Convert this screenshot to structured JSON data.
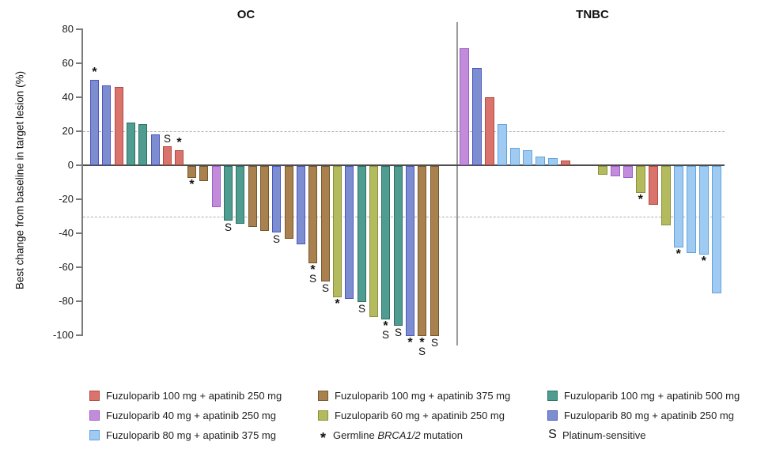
{
  "chart_data": {
    "type": "bar",
    "subtype": "waterfall",
    "title": "",
    "ylabel": "Best change from baseline in target lesion (%)",
    "ylim": [
      -100,
      80
    ],
    "yticks": [
      80,
      60,
      40,
      20,
      0,
      -20,
      -40,
      -60,
      -80,
      -100
    ],
    "reference_lines": [
      20,
      -30
    ],
    "grid": "off",
    "legend_position": "bottom",
    "marker_meanings": {
      "*": "Germline BRCA1/2 mutation",
      "S": "Platinum-sensitive"
    },
    "groups": {
      "red": {
        "label": "Fuzuloparib 100 mg + apatinib 250 mg",
        "fill": "#D9736C",
        "border": "#B04A42"
      },
      "brown": {
        "label": "Fuzuloparib 100 mg + apatinib 375 mg",
        "fill": "#A8814E",
        "border": "#77562C"
      },
      "teal": {
        "label": "Fuzuloparib 100 mg + apatinib 500 mg",
        "fill": "#4F9C90",
        "border": "#2F6F63"
      },
      "purple": {
        "label": "Fuzuloparib 40 mg + apatinib 250 mg",
        "fill": "#C38CDB",
        "border": "#9C5FC8"
      },
      "olive": {
        "label": "Fuzuloparib 60 mg + apatinib 250 mg",
        "fill": "#B4BA5E",
        "border": "#8B913A"
      },
      "royal": {
        "label": "Fuzuloparib 80 mg + apatinib 250 mg",
        "fill": "#7C8DD0",
        "border": "#4D55C0"
      },
      "sky": {
        "label": "Fuzuloparib 80 mg + apatinib 375 mg",
        "fill": "#9FCBF2",
        "border": "#62A3DC"
      }
    },
    "panels": [
      {
        "title": "OC",
        "bars": [
          {
            "v": 50,
            "g": "royal",
            "m": "*"
          },
          {
            "v": 47,
            "g": "royal"
          },
          {
            "v": 46,
            "g": "red"
          },
          {
            "v": 25,
            "g": "teal"
          },
          {
            "v": 24,
            "g": "teal"
          },
          {
            "v": 18,
            "g": "royal"
          },
          {
            "v": 11,
            "g": "red",
            "m": "S"
          },
          {
            "v": 9,
            "g": "red",
            "m": "*"
          },
          {
            "v": -7,
            "g": "brown",
            "m": "*"
          },
          {
            "v": -9,
            "g": "brown"
          },
          {
            "v": -24,
            "g": "purple"
          },
          {
            "v": -32,
            "g": "teal",
            "m": "S"
          },
          {
            "v": -34,
            "g": "teal"
          },
          {
            "v": -36,
            "g": "brown"
          },
          {
            "v": -38,
            "g": "brown"
          },
          {
            "v": -39,
            "g": "royal",
            "m": "S"
          },
          {
            "v": -43,
            "g": "brown"
          },
          {
            "v": -46,
            "g": "royal"
          },
          {
            "v": -57,
            "g": "brown",
            "m": "*S"
          },
          {
            "v": -68,
            "g": "brown",
            "m": "S"
          },
          {
            "v": -77,
            "g": "olive",
            "m": "*"
          },
          {
            "v": -78,
            "g": "royal"
          },
          {
            "v": -80,
            "g": "teal",
            "m": "S"
          },
          {
            "v": -89,
            "g": "olive"
          },
          {
            "v": -90,
            "g": "teal",
            "m": "*S"
          },
          {
            "v": -94,
            "g": "teal",
            "m": "S"
          },
          {
            "v": -100,
            "g": "royal",
            "m": "*"
          },
          {
            "v": -100,
            "g": "brown",
            "m": "*S"
          },
          {
            "v": -100,
            "g": "brown",
            "m": "S"
          }
        ]
      },
      {
        "title": "TNBC",
        "bars": [
          {
            "v": 69,
            "g": "purple"
          },
          {
            "v": 57,
            "g": "royal"
          },
          {
            "v": 40,
            "g": "red"
          },
          {
            "v": 24,
            "g": "sky"
          },
          {
            "v": 10,
            "g": "sky"
          },
          {
            "v": 9,
            "g": "sky"
          },
          {
            "v": 5,
            "g": "sky"
          },
          {
            "v": 4,
            "g": "sky"
          },
          {
            "v": 3,
            "g": "red"
          },
          {
            "v": 0,
            "g": null
          },
          {
            "v": 0,
            "g": null
          },
          {
            "v": -5,
            "g": "olive"
          },
          {
            "v": -6,
            "g": "purple"
          },
          {
            "v": -7,
            "g": "purple"
          },
          {
            "v": -16,
            "g": "olive",
            "m": "*"
          },
          {
            "v": -23,
            "g": "red"
          },
          {
            "v": -35,
            "g": "olive"
          },
          {
            "v": -48,
            "g": "sky",
            "m": "*"
          },
          {
            "v": -51,
            "g": "sky"
          },
          {
            "v": -52,
            "g": "sky",
            "m": "*"
          },
          {
            "v": -75,
            "g": "sky"
          }
        ]
      }
    ]
  },
  "legend": {
    "items": [
      {
        "group": "red",
        "label": "Fuzuloparib 100 mg + apatinib 250 mg"
      },
      {
        "group": "purple",
        "label": "Fuzuloparib 40 mg + apatinib 250 mg"
      },
      {
        "group": "sky",
        "label": "Fuzuloparib 80 mg + apatinib 375 mg"
      },
      {
        "group": "brown",
        "label": "Fuzuloparib 100 mg + apatinib 375 mg"
      },
      {
        "group": "olive",
        "label": "Fuzuloparib 60 mg + apatinib 250 mg"
      },
      {
        "group": "teal",
        "label": "Fuzuloparib 100 mg + apatinib 500 mg"
      },
      {
        "group": "royal",
        "label": "Fuzuloparib 80 mg + apatinib 250 mg"
      }
    ],
    "asterisk": {
      "symbol": "*",
      "prefix": "Germline ",
      "italic": "BRCA1/2",
      "suffix": " mutation"
    },
    "s": {
      "symbol": "S",
      "label": "Platinum-sensitive"
    }
  }
}
